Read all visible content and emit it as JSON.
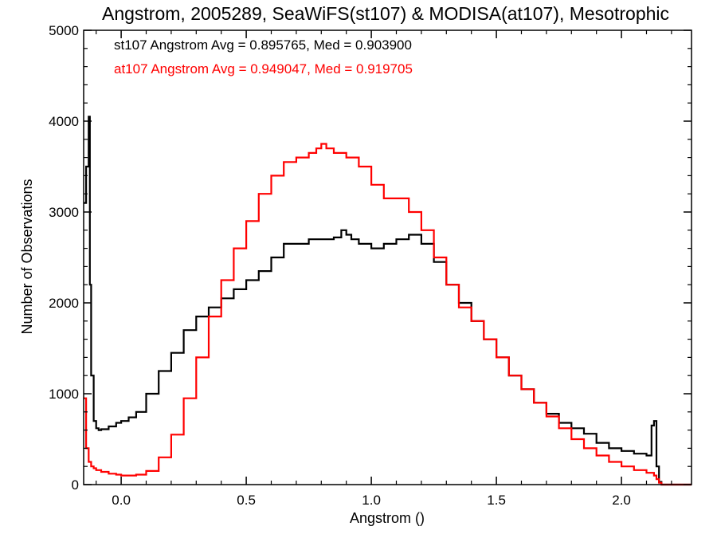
{
  "chart_data": {
    "type": "line",
    "title": "Angstrom, 2005289, SeaWiFS(st107) & MODISA(at107), Mesotrophic",
    "xlabel": "Angstrom ()",
    "ylabel": "Number of Observations",
    "xlim": [
      -0.15,
      2.28
    ],
    "ylim": [
      0,
      5000
    ],
    "x_ticks": [
      {
        "value": 0.0,
        "label": "0.0"
      },
      {
        "value": 0.5,
        "label": "0.5"
      },
      {
        "value": 1.0,
        "label": "1.0"
      },
      {
        "value": 1.5,
        "label": "1.5"
      },
      {
        "value": 2.0,
        "label": "2.0"
      }
    ],
    "y_ticks": [
      {
        "value": 0,
        "label": "0"
      },
      {
        "value": 1000,
        "label": "1000"
      },
      {
        "value": 2000,
        "label": "2000"
      },
      {
        "value": 3000,
        "label": "3000"
      },
      {
        "value": 4000,
        "label": "4000"
      },
      {
        "value": 5000,
        "label": "5000"
      }
    ],
    "grid": false,
    "legend_position": "top-left",
    "step_plot": true,
    "series": [
      {
        "name": "st107",
        "color": "#000000",
        "annotation": "st107 Angstrom Avg = 0.895765, Med = 0.903900",
        "x": [
          -0.15,
          -0.14,
          -0.13,
          -0.125,
          -0.12,
          -0.11,
          -0.1,
          -0.09,
          -0.08,
          -0.05,
          -0.02,
          0.0,
          0.03,
          0.06,
          0.1,
          0.15,
          0.2,
          0.25,
          0.3,
          0.35,
          0.4,
          0.45,
          0.5,
          0.55,
          0.6,
          0.65,
          0.7,
          0.75,
          0.8,
          0.85,
          0.88,
          0.9,
          0.92,
          0.95,
          1.0,
          1.05,
          1.1,
          1.15,
          1.2,
          1.25,
          1.3,
          1.35,
          1.4,
          1.45,
          1.5,
          1.55,
          1.6,
          1.65,
          1.7,
          1.75,
          1.8,
          1.85,
          1.9,
          1.95,
          2.0,
          2.05,
          2.1,
          2.12,
          2.13,
          2.14,
          2.15,
          2.16,
          2.2,
          2.28
        ],
        "y": [
          3100,
          3500,
          4050,
          2200,
          1200,
          700,
          620,
          600,
          610,
          640,
          680,
          700,
          740,
          800,
          1000,
          1250,
          1450,
          1700,
          1850,
          1950,
          2050,
          2150,
          2250,
          2350,
          2500,
          2650,
          2650,
          2700,
          2700,
          2720,
          2800,
          2750,
          2700,
          2650,
          2600,
          2650,
          2700,
          2750,
          2650,
          2450,
          2200,
          2000,
          1800,
          1600,
          1400,
          1200,
          1050,
          900,
          780,
          680,
          620,
          560,
          460,
          400,
          370,
          340,
          320,
          650,
          700,
          200,
          30,
          0,
          0,
          0
        ]
      },
      {
        "name": "at107",
        "color": "#ff0000",
        "annotation": "at107 Angstrom Avg = 0.949047, Med = 0.919705",
        "x": [
          -0.15,
          -0.14,
          -0.13,
          -0.12,
          -0.11,
          -0.1,
          -0.08,
          -0.05,
          -0.02,
          0.0,
          0.03,
          0.06,
          0.1,
          0.15,
          0.2,
          0.25,
          0.3,
          0.35,
          0.4,
          0.45,
          0.5,
          0.55,
          0.6,
          0.65,
          0.7,
          0.75,
          0.78,
          0.8,
          0.82,
          0.85,
          0.9,
          0.95,
          1.0,
          1.05,
          1.1,
          1.15,
          1.2,
          1.25,
          1.3,
          1.35,
          1.4,
          1.45,
          1.5,
          1.55,
          1.6,
          1.65,
          1.7,
          1.75,
          1.8,
          1.85,
          1.9,
          1.95,
          2.0,
          2.05,
          2.1,
          2.13,
          2.14,
          2.15,
          2.16,
          2.2,
          2.28
        ],
        "y": [
          950,
          400,
          250,
          200,
          180,
          160,
          140,
          120,
          110,
          100,
          100,
          110,
          150,
          300,
          550,
          950,
          1400,
          1850,
          2250,
          2600,
          2900,
          3200,
          3400,
          3550,
          3600,
          3650,
          3700,
          3750,
          3700,
          3650,
          3600,
          3500,
          3300,
          3150,
          3150,
          3000,
          2800,
          2500,
          2200,
          1950,
          1800,
          1600,
          1400,
          1200,
          1050,
          900,
          750,
          620,
          500,
          400,
          320,
          250,
          200,
          160,
          130,
          100,
          60,
          20,
          0,
          0,
          0
        ]
      }
    ]
  }
}
